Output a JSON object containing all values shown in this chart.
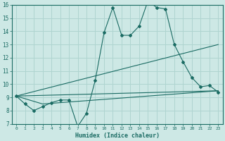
{
  "bg_color": "#cde8e5",
  "grid_color": "#afd4d0",
  "line_color": "#1a6b63",
  "xlabel": "Humidex (Indice chaleur)",
  "xlim": [
    -0.5,
    23.5
  ],
  "ylim": [
    7,
    16
  ],
  "yticks": [
    7,
    8,
    9,
    10,
    11,
    12,
    13,
    14,
    15,
    16
  ],
  "xticks": [
    0,
    1,
    2,
    3,
    4,
    5,
    6,
    7,
    8,
    9,
    10,
    11,
    12,
    13,
    14,
    15,
    16,
    17,
    18,
    19,
    20,
    21,
    22,
    23
  ],
  "series1_x": [
    0,
    1,
    2,
    3,
    4,
    5,
    6,
    7,
    8,
    9,
    10,
    11,
    12,
    13,
    14,
    15,
    16,
    17,
    18,
    19,
    20,
    21,
    22,
    23
  ],
  "series1_y": [
    9.1,
    8.5,
    8.0,
    8.3,
    8.6,
    8.8,
    8.8,
    6.8,
    7.8,
    10.3,
    13.9,
    15.8,
    13.7,
    13.7,
    14.4,
    16.3,
    15.8,
    15.7,
    13.0,
    11.7,
    10.5,
    9.8,
    9.9,
    9.4
  ],
  "series2_x": [
    0,
    23
  ],
  "series2_y": [
    9.1,
    9.5
  ],
  "series3_x": [
    0,
    3,
    23
  ],
  "series3_y": [
    9.1,
    8.5,
    9.5
  ],
  "series4_x": [
    0,
    23
  ],
  "series4_y": [
    9.1,
    13.0
  ]
}
